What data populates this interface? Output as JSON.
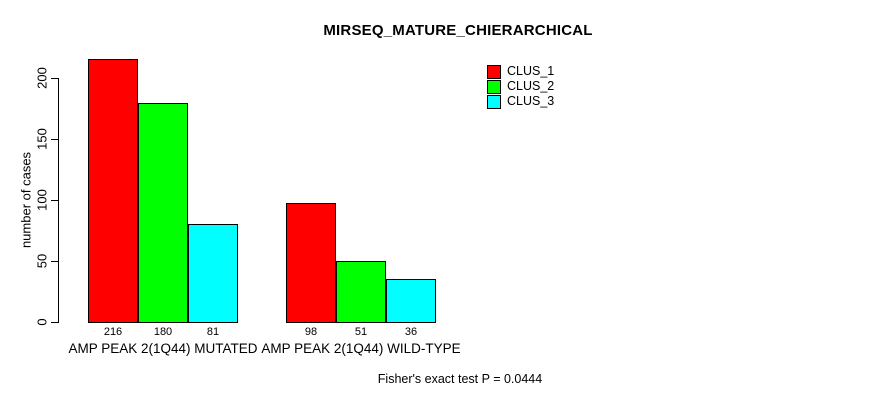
{
  "chart_data": {
    "type": "bar",
    "title": "MIRSEQ_MATURE_CHIERARCHICAL",
    "ylabel": "number of cases",
    "xlabel": "",
    "ylim": [
      0,
      220
    ],
    "yticks": [
      0,
      50,
      100,
      150,
      200
    ],
    "grid": false,
    "legend_position": "top-right",
    "categories": [
      "AMP PEAK 2(1Q44) MUTATED",
      "AMP PEAK 2(1Q44) WILD-TYPE"
    ],
    "series": [
      {
        "name": "CLUS_1",
        "color": "#ff0000",
        "values": [
          216,
          98
        ]
      },
      {
        "name": "CLUS_2",
        "color": "#00ff00",
        "values": [
          180,
          51
        ]
      },
      {
        "name": "CLUS_3",
        "color": "#00ffff",
        "values": [
          81,
          36
        ]
      }
    ],
    "bar_value_labels": [
      [
        216,
        180,
        81
      ],
      [
        98,
        51,
        36
      ]
    ],
    "annotation": "Fisher's exact test P = 0.0444"
  },
  "colors": {
    "background": "#ffffff",
    "axis": "#000000",
    "text": "#000000",
    "clus_1": "#ff0000",
    "clus_2": "#00ff00",
    "clus_3": "#00ffff"
  }
}
